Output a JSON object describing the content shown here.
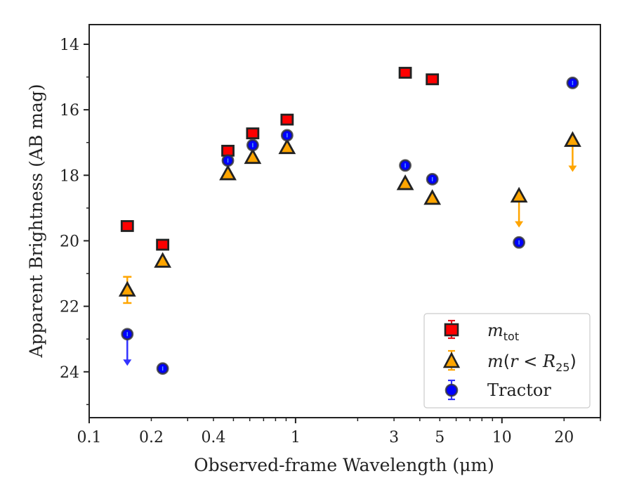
{
  "chart_data": {
    "type": "scatter",
    "title": "",
    "xlabel": "Observed-frame Wavelength (μm)",
    "ylabel": "Apparent Brightness (AB mag)",
    "xscale": "log",
    "xlim": [
      0.1,
      30
    ],
    "ylim": [
      25.4,
      13.4
    ],
    "y_inverted": true,
    "xticks": [
      0.1,
      0.2,
      0.4,
      1,
      3,
      5,
      10,
      20
    ],
    "xtick_labels": [
      "0.1",
      "0.2",
      "0.4",
      "1",
      "3",
      "5",
      "10",
      "20"
    ],
    "yticks": [
      14,
      16,
      18,
      20,
      22,
      24
    ],
    "ytick_labels": [
      "14",
      "16",
      "18",
      "20",
      "22",
      "24"
    ],
    "grid": false,
    "legend_position": "lower-right",
    "series": [
      {
        "name": "m_tot",
        "legend": {
          "math": "m",
          "sub": "tot"
        },
        "marker": "square",
        "color": "#ff0000",
        "error_color": "#e8101a",
        "x": [
          0.153,
          0.227,
          0.47,
          0.62,
          0.91,
          3.4,
          4.6
        ],
        "y": [
          19.55,
          20.12,
          17.25,
          16.72,
          16.3,
          14.87,
          15.07
        ],
        "err": [
          0.05,
          0.05,
          0.05,
          0.05,
          0.05,
          0.05,
          0.05
        ],
        "upper_limit": [
          false,
          false,
          false,
          false,
          false,
          false,
          false
        ]
      },
      {
        "name": "m(r<R_25)",
        "legend": {
          "math_pre": "m",
          "paren_open": "(",
          "r": "r",
          "op": " < ",
          "R": "R",
          "sub": "25",
          "paren_close": ")"
        },
        "marker": "triangle",
        "color": "#ffa500",
        "error_color": "#ffa500",
        "x": [
          0.153,
          0.227,
          0.47,
          0.62,
          0.91,
          3.4,
          4.6,
          12.1,
          22.0
        ],
        "y": [
          21.5,
          20.62,
          17.95,
          17.45,
          17.15,
          18.25,
          18.7,
          18.63,
          16.93
        ],
        "err": [
          0.4,
          0.05,
          0.05,
          0.05,
          0.05,
          0.05,
          0.05,
          0.05,
          0.05
        ],
        "upper_limit": [
          false,
          false,
          false,
          false,
          false,
          false,
          false,
          true,
          true
        ]
      },
      {
        "name": "Tractor",
        "marker": "circle",
        "color": "#0000ff",
        "error_color": "#3333ff",
        "x": [
          0.153,
          0.227,
          0.47,
          0.62,
          0.91,
          3.4,
          4.6,
          12.1,
          22.0
        ],
        "y": [
          22.85,
          23.9,
          17.55,
          17.08,
          16.78,
          17.7,
          18.12,
          20.05,
          15.18
        ],
        "err": [
          0.05,
          0.05,
          0.05,
          0.05,
          0.05,
          0.05,
          0.05,
          0.05,
          0.05
        ],
        "upper_limit": [
          true,
          false,
          false,
          false,
          false,
          false,
          false,
          false,
          false
        ]
      }
    ]
  }
}
